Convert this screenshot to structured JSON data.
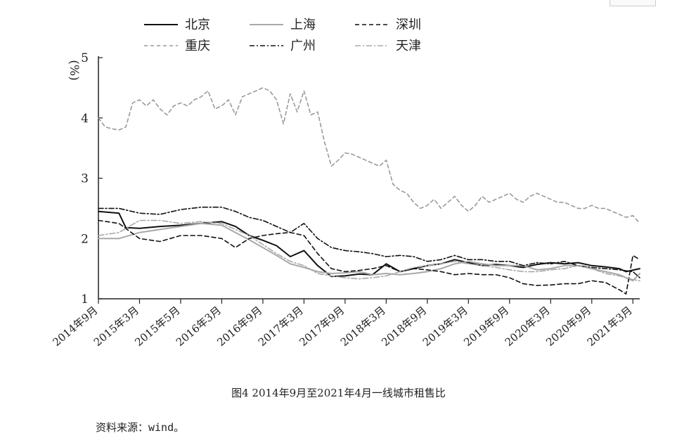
{
  "chart_data": {
    "type": "line",
    "title": "图4 2014年9月至2021年4月一线城市租售比",
    "ylabel": "(%)",
    "ylim": [
      1,
      5
    ],
    "yticks": [
      1,
      2,
      3,
      4,
      5
    ],
    "xlim": [
      0,
      79
    ],
    "categories": [
      "2014年9月",
      "2015年3月",
      "2015年5月",
      "2016年3月",
      "2016年9月",
      "2017年3月",
      "2017年9月",
      "2018年3月",
      "2018年9月",
      "2019年3月",
      "2019年9月",
      "2020年3月",
      "2020年9月",
      "2021年3月"
    ],
    "category_x": [
      0,
      6,
      12,
      18,
      24,
      30,
      36,
      42,
      48,
      54,
      60,
      66,
      72,
      78
    ],
    "grid": false,
    "legend_placement": "top",
    "series": [
      {
        "name": "北京",
        "color": "#111111",
        "dash": "",
        "width": 2.0,
        "x": [
          0,
          3,
          4,
          6,
          9,
          12,
          15,
          18,
          20,
          22,
          24,
          26,
          28,
          30,
          32,
          34,
          36,
          38,
          40,
          42,
          44,
          46,
          48,
          50,
          52,
          54,
          56,
          58,
          60,
          62,
          64,
          66,
          68,
          70,
          72,
          74,
          76,
          77,
          79
        ],
        "values": [
          2.45,
          2.42,
          2.18,
          2.17,
          2.2,
          2.22,
          2.25,
          2.28,
          2.2,
          2.05,
          1.97,
          1.88,
          1.7,
          1.8,
          1.55,
          1.37,
          1.38,
          1.41,
          1.4,
          1.58,
          1.45,
          1.5,
          1.55,
          1.58,
          1.65,
          1.6,
          1.55,
          1.57,
          1.55,
          1.52,
          1.57,
          1.6,
          1.58,
          1.6,
          1.55,
          1.53,
          1.5,
          1.45,
          1.5
        ]
      },
      {
        "name": "上海",
        "color": "#a8a8a8",
        "dash": "",
        "width": 2.0,
        "x": [
          0,
          3,
          6,
          9,
          12,
          15,
          18,
          20,
          22,
          24,
          26,
          28,
          30,
          32,
          34,
          36,
          38,
          40,
          42,
          44,
          46,
          48,
          50,
          52,
          54,
          56,
          58,
          60,
          62,
          64,
          66,
          68,
          70,
          72,
          74,
          76,
          78,
          79
        ],
        "values": [
          2.0,
          2.0,
          2.1,
          2.15,
          2.2,
          2.25,
          2.22,
          2.1,
          1.98,
          1.85,
          1.72,
          1.58,
          1.52,
          1.45,
          1.42,
          1.43,
          1.45,
          1.4,
          1.42,
          1.4,
          1.42,
          1.45,
          1.5,
          1.58,
          1.62,
          1.58,
          1.55,
          1.55,
          1.55,
          1.48,
          1.5,
          1.55,
          1.55,
          1.5,
          1.45,
          1.4,
          1.3,
          1.42
        ]
      },
      {
        "name": "深圳",
        "color": "#111111",
        "dash": "6,4",
        "width": 1.6,
        "x": [
          0,
          3,
          6,
          9,
          12,
          15,
          18,
          20,
          22,
          24,
          26,
          28,
          30,
          32,
          34,
          36,
          38,
          40,
          42,
          44,
          46,
          48,
          50,
          52,
          54,
          56,
          58,
          60,
          62,
          64,
          66,
          68,
          70,
          72,
          74,
          76,
          77,
          78,
          79
        ],
        "values": [
          2.3,
          2.25,
          2.0,
          1.95,
          2.05,
          2.05,
          2.0,
          1.85,
          2.0,
          2.05,
          2.08,
          2.1,
          2.05,
          1.75,
          1.5,
          1.45,
          1.47,
          1.5,
          1.55,
          1.45,
          1.5,
          1.48,
          1.45,
          1.4,
          1.42,
          1.4,
          1.4,
          1.35,
          1.25,
          1.22,
          1.23,
          1.25,
          1.25,
          1.3,
          1.27,
          1.15,
          1.08,
          1.72,
          1.65
        ]
      },
      {
        "name": "重庆",
        "color": "#9a9a9a",
        "dash": "5,4",
        "width": 1.6,
        "x": [
          0,
          1,
          2,
          3,
          4,
          5,
          6,
          7,
          8,
          9,
          10,
          11,
          12,
          13,
          14,
          15,
          16,
          17,
          18,
          19,
          20,
          21,
          22,
          23,
          24,
          25,
          26,
          27,
          28,
          29,
          30,
          31,
          32,
          33,
          34,
          35,
          36,
          37,
          38,
          39,
          40,
          41,
          42,
          43,
          44,
          45,
          46,
          47,
          48,
          49,
          50,
          51,
          52,
          53,
          54,
          55,
          56,
          57,
          58,
          59,
          60,
          61,
          62,
          63,
          64,
          65,
          66,
          67,
          68,
          69,
          70,
          71,
          72,
          73,
          74,
          75,
          76,
          77,
          78,
          79
        ],
        "values": [
          4.0,
          3.85,
          3.82,
          3.8,
          3.85,
          4.25,
          4.3,
          4.2,
          4.3,
          4.15,
          4.05,
          4.2,
          4.25,
          4.2,
          4.3,
          4.35,
          4.45,
          4.15,
          4.2,
          4.3,
          4.05,
          4.35,
          4.4,
          4.45,
          4.5,
          4.45,
          4.3,
          3.9,
          4.4,
          4.1,
          4.45,
          4.05,
          4.1,
          3.6,
          3.2,
          3.3,
          3.42,
          3.4,
          3.35,
          3.3,
          3.25,
          3.2,
          3.3,
          2.9,
          2.8,
          2.75,
          2.6,
          2.5,
          2.55,
          2.65,
          2.5,
          2.6,
          2.7,
          2.55,
          2.45,
          2.55,
          2.7,
          2.6,
          2.65,
          2.7,
          2.75,
          2.65,
          2.6,
          2.7,
          2.75,
          2.7,
          2.65,
          2.6,
          2.6,
          2.55,
          2.5,
          2.5,
          2.55,
          2.5,
          2.5,
          2.45,
          2.4,
          2.35,
          2.38,
          2.25
        ]
      },
      {
        "name": "广州",
        "color": "#111111",
        "dash": "7,3,2,3",
        "width": 1.6,
        "x": [
          0,
          3,
          6,
          9,
          12,
          15,
          18,
          20,
          22,
          24,
          26,
          28,
          30,
          32,
          34,
          36,
          38,
          40,
          42,
          44,
          46,
          48,
          50,
          52,
          54,
          56,
          58,
          60,
          62,
          64,
          66,
          68,
          70,
          72,
          74,
          76,
          78,
          79
        ],
        "values": [
          2.5,
          2.5,
          2.42,
          2.4,
          2.48,
          2.52,
          2.52,
          2.45,
          2.35,
          2.3,
          2.2,
          2.1,
          2.25,
          2.0,
          1.85,
          1.8,
          1.78,
          1.75,
          1.7,
          1.72,
          1.7,
          1.62,
          1.65,
          1.72,
          1.65,
          1.65,
          1.62,
          1.62,
          1.55,
          1.6,
          1.58,
          1.62,
          1.55,
          1.52,
          1.5,
          1.48,
          1.45,
          1.35
        ]
      },
      {
        "name": "天津",
        "color": "#a8a8a8",
        "dash": "8,3,2,3",
        "width": 1.6,
        "x": [
          0,
          3,
          6,
          9,
          12,
          15,
          18,
          20,
          22,
          24,
          26,
          28,
          30,
          32,
          34,
          36,
          38,
          40,
          42,
          44,
          46,
          48,
          50,
          52,
          54,
          56,
          58,
          60,
          62,
          64,
          66,
          68,
          70,
          72,
          74,
          76,
          78,
          79
        ],
        "values": [
          2.05,
          2.1,
          2.3,
          2.3,
          2.25,
          2.28,
          2.25,
          2.15,
          2.05,
          1.9,
          1.75,
          1.62,
          1.55,
          1.42,
          1.38,
          1.35,
          1.33,
          1.35,
          1.38,
          1.45,
          1.52,
          1.55,
          1.58,
          1.62,
          1.58,
          1.55,
          1.52,
          1.48,
          1.45,
          1.45,
          1.48,
          1.5,
          1.55,
          1.5,
          1.42,
          1.38,
          1.32,
          1.3
        ]
      }
    ]
  },
  "caption": "图4 2014年9月至2021年4月一线城市租售比",
  "source": "资料来源：wind。"
}
